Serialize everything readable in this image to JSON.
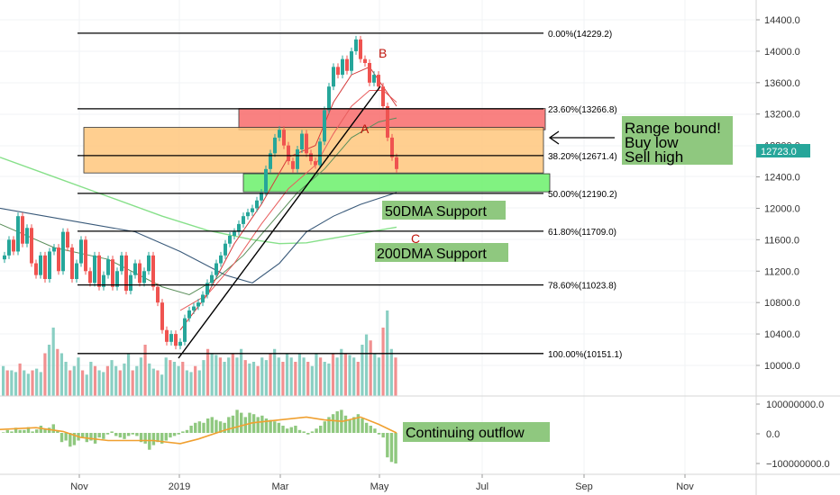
{
  "colors": {
    "up": "#76c7b8",
    "down": "#ef7d7d",
    "up_candle": "#26a69a",
    "down_candle": "#ef5350",
    "price_tag": "#26a69a",
    "red_zone": "#f86b6b",
    "orange_zone": "#ffc77c",
    "green_zone": "#6bf06b",
    "note_box": "#8fc87f",
    "ma200": "#87e08a",
    "ma_dark": "#3a5a7a",
    "flow_line": "#f0a030",
    "annot_red": "#c0160d",
    "fib_line": "#000000"
  },
  "chart_data": {
    "type": "line",
    "title": "",
    "price_axis": {
      "ticks": [
        "14400.0",
        "14000.0",
        "13600.0",
        "13200.0",
        "12800.0",
        "12400.0",
        "12000.0",
        "11600.0",
        "11200.0",
        "10800.0",
        "10400.0",
        "10000.0"
      ],
      "min": 9550,
      "max": 14550
    },
    "time_axis": {
      "labels": [
        "Nov",
        "2019",
        "Mar",
        "May",
        "Jul",
        "Sep",
        "Nov"
      ]
    },
    "last_price": "12723.0",
    "fib_levels": [
      {
        "label": "0.00%(14229.2)",
        "value": 14229.2
      },
      {
        "label": "23.60%(13266.8)",
        "value": 13266.8
      },
      {
        "label": "38.20%(12671.4)",
        "value": 12671.4
      },
      {
        "label": "50.00%(12190.2)",
        "value": 12190.2
      },
      {
        "label": "61.80%(11709.0)",
        "value": 11709.0
      },
      {
        "label": "78.60%(11023.8)",
        "value": 11023.8
      },
      {
        "label": "100.00%(10151.1)",
        "value": 10151.1
      }
    ],
    "zones": [
      {
        "name": "red",
        "from": 13000,
        "to": 13270
      },
      {
        "name": "orange",
        "from": 12450,
        "to": 13030
      },
      {
        "name": "green",
        "from": 12210,
        "to": 12440
      }
    ],
    "price_path": [
      [
        0,
        11350
      ],
      [
        5,
        11400
      ],
      [
        10,
        11600
      ],
      [
        15,
        11450
      ],
      [
        20,
        11900
      ],
      [
        25,
        11550
      ],
      [
        30,
        11750
      ],
      [
        35,
        11300
      ],
      [
        40,
        11150
      ],
      [
        45,
        11400
      ],
      [
        50,
        11100
      ],
      [
        55,
        11450
      ],
      [
        60,
        11500
      ],
      [
        65,
        11200
      ],
      [
        70,
        11700
      ],
      [
        75,
        11500
      ],
      [
        80,
        11100
      ],
      [
        85,
        11300
      ],
      [
        90,
        11600
      ],
      [
        95,
        11200
      ],
      [
        100,
        11050
      ],
      [
        105,
        11400
      ],
      [
        110,
        11000
      ],
      [
        115,
        11150
      ],
      [
        120,
        11350
      ],
      [
        125,
        11000
      ],
      [
        130,
        11200
      ],
      [
        135,
        11400
      ],
      [
        140,
        10950
      ],
      [
        145,
        11150
      ],
      [
        150,
        11300
      ],
      [
        155,
        11050
      ],
      [
        160,
        11200
      ],
      [
        165,
        11400
      ],
      [
        170,
        11000
      ],
      [
        175,
        10800
      ],
      [
        180,
        10450
      ],
      [
        185,
        10300
      ],
      [
        190,
        10400
      ],
      [
        195,
        10250
      ],
      [
        200,
        10300
      ],
      [
        205,
        10600
      ],
      [
        210,
        10700
      ],
      [
        215,
        10750
      ],
      [
        220,
        10800
      ],
      [
        225,
        10900
      ],
      [
        230,
        11050
      ],
      [
        235,
        11150
      ],
      [
        240,
        11300
      ],
      [
        245,
        11400
      ],
      [
        250,
        11550
      ],
      [
        255,
        11650
      ],
      [
        260,
        11700
      ],
      [
        265,
        11800
      ],
      [
        270,
        11900
      ],
      [
        275,
        11950
      ],
      [
        280,
        12000
      ],
      [
        285,
        12100
      ],
      [
        290,
        12200
      ],
      [
        295,
        12500
      ],
      [
        300,
        12700
      ],
      [
        305,
        12900
      ],
      [
        310,
        13000
      ],
      [
        315,
        12800
      ],
      [
        320,
        12600
      ],
      [
        325,
        12500
      ],
      [
        330,
        12750
      ],
      [
        335,
        12950
      ],
      [
        340,
        12700
      ],
      [
        345,
        12600
      ],
      [
        350,
        12550
      ],
      [
        355,
        12850
      ],
      [
        360,
        13250
      ],
      [
        365,
        13550
      ],
      [
        370,
        13800
      ],
      [
        375,
        13700
      ],
      [
        380,
        13900
      ],
      [
        385,
        13750
      ],
      [
        390,
        14000
      ],
      [
        395,
        14150
      ],
      [
        400,
        13900
      ],
      [
        405,
        13850
      ],
      [
        410,
        13600
      ],
      [
        415,
        13700
      ],
      [
        420,
        13550
      ],
      [
        425,
        13300
      ],
      [
        430,
        12900
      ],
      [
        435,
        12650
      ],
      [
        440,
        12500
      ]
    ],
    "ma_fast": [
      [
        200,
        10450
      ],
      [
        230,
        10900
      ],
      [
        260,
        11550
      ],
      [
        290,
        12050
      ],
      [
        320,
        12650
      ],
      [
        350,
        12800
      ],
      [
        370,
        13350
      ],
      [
        390,
        13700
      ],
      [
        410,
        13800
      ],
      [
        425,
        13550
      ],
      [
        440,
        13300
      ]
    ],
    "ma_mid": [
      [
        200,
        10700
      ],
      [
        230,
        10900
      ],
      [
        260,
        11300
      ],
      [
        290,
        11800
      ],
      [
        320,
        12250
      ],
      [
        350,
        12550
      ],
      [
        370,
        12950
      ],
      [
        390,
        13300
      ],
      [
        410,
        13500
      ],
      [
        425,
        13500
      ],
      [
        440,
        13350
      ]
    ],
    "ma50": [
      [
        0,
        11800
      ],
      [
        60,
        11500
      ],
      [
        120,
        11350
      ],
      [
        180,
        11000
      ],
      [
        210,
        10900
      ],
      [
        240,
        11100
      ],
      [
        270,
        11400
      ],
      [
        300,
        11800
      ],
      [
        330,
        12200
      ],
      [
        360,
        12500
      ],
      [
        390,
        12900
      ],
      [
        420,
        13100
      ],
      [
        440,
        13150
      ]
    ],
    "ma_dark": [
      [
        0,
        12000
      ],
      [
        50,
        11900
      ],
      [
        100,
        11800
      ],
      [
        150,
        11700
      ],
      [
        200,
        11450
      ],
      [
        250,
        11150
      ],
      [
        280,
        11050
      ],
      [
        310,
        11300
      ],
      [
        340,
        11700
      ],
      [
        370,
        11900
      ],
      [
        400,
        12050
      ],
      [
        440,
        12200
      ]
    ],
    "ma200": [
      [
        0,
        12650
      ],
      [
        60,
        12400
      ],
      [
        120,
        12150
      ],
      [
        180,
        11900
      ],
      [
        230,
        11720
      ],
      [
        280,
        11600
      ],
      [
        310,
        11550
      ],
      [
        340,
        11560
      ],
      [
        370,
        11620
      ],
      [
        410,
        11700
      ],
      [
        440,
        11760
      ]
    ],
    "volume": [
      0.35,
      0.3,
      0.3,
      0.28,
      0.38,
      0.3,
      0.26,
      0.3,
      0.32,
      0.28,
      0.5,
      0.6,
      0.8,
      0.55,
      0.5,
      0.4,
      0.3,
      0.35,
      0.45,
      0.3,
      0.25,
      0.4,
      0.35,
      0.3,
      0.28,
      0.35,
      0.42,
      0.35,
      0.3,
      0.38,
      0.5,
      0.3,
      0.35,
      0.45,
      0.6,
      0.38,
      0.32,
      0.3,
      0.25,
      0.45,
      0.42,
      0.4,
      0.35,
      0.4,
      0.3,
      0.28,
      0.35,
      0.3,
      0.42,
      0.55,
      0.5,
      0.48,
      0.45,
      0.4,
      0.45,
      0.5,
      0.45,
      0.55,
      0.42,
      0.38,
      0.4,
      0.35,
      0.45,
      0.42,
      0.5,
      0.55,
      0.45,
      0.4,
      0.5,
      0.45,
      0.4,
      0.5,
      0.45,
      0.4,
      0.35,
      0.5,
      0.45,
      0.4,
      0.38,
      0.5,
      0.45,
      0.55,
      0.5,
      0.48,
      0.45,
      0.4,
      0.6,
      0.72,
      0.65,
      0.5,
      0.45,
      0.8,
      1.0,
      0.55,
      0.45
    ],
    "flow_axis": {
      "ticks": [
        "100000000.0",
        "0.0",
        "−100000000.0"
      ]
    },
    "flow": [
      0.02,
      0.1,
      0.05,
      0.18,
      0.1,
      0.1,
      0.2,
      0.05,
      0.12,
      0.25,
      0.15,
      0.18,
      0.3,
      0.08,
      -0.3,
      -0.25,
      -0.45,
      -0.4,
      -0.25,
      -0.15,
      -0.3,
      -0.25,
      -0.35,
      -0.15,
      -0.2,
      -0.05,
      0.05,
      -0.1,
      -0.15,
      -0.2,
      -0.1,
      -0.05,
      -0.1,
      -0.3,
      -0.35,
      -0.55,
      -0.4,
      -0.3,
      -0.35,
      -0.25,
      -0.15,
      -0.1,
      -0.05,
      0.05,
      0.1,
      0.25,
      0.35,
      0.4,
      0.35,
      0.5,
      0.55,
      0.45,
      0.4,
      0.35,
      0.55,
      0.6,
      0.8,
      0.7,
      0.55,
      0.7,
      0.65,
      0.55,
      0.6,
      0.5,
      0.45,
      0.4,
      0.35,
      0.25,
      0.15,
      0.2,
      0.25,
      0.1,
      0.05,
      -0.05,
      0.05,
      0.15,
      0.25,
      0.4,
      0.55,
      0.65,
      0.75,
      0.8,
      0.6,
      0.45,
      0.55,
      0.65,
      0.5,
      0.35,
      0.25,
      0.15,
      -0.05,
      -0.15,
      -0.8,
      -0.95,
      -1.0
    ],
    "flow_ma": [
      [
        0,
        0.12
      ],
      [
        40,
        0.18
      ],
      [
        70,
        0.05
      ],
      [
        90,
        -0.15
      ],
      [
        120,
        -0.25
      ],
      [
        170,
        -0.25
      ],
      [
        200,
        -0.35
      ],
      [
        220,
        -0.2
      ],
      [
        250,
        0.1
      ],
      [
        280,
        0.35
      ],
      [
        310,
        0.45
      ],
      [
        340,
        0.55
      ],
      [
        360,
        0.45
      ],
      [
        380,
        0.4
      ],
      [
        400,
        0.55
      ],
      [
        420,
        0.3
      ],
      [
        440,
        0.0
      ]
    ]
  },
  "annotations": {
    "range_line1": "Range bound!",
    "range_line2": "Buy low",
    "range_line3": "Sell high",
    "support50": "50DMA Support",
    "support200": "200DMA Support",
    "outflow": "Continuing outflow",
    "point_a": "A",
    "point_b": "B",
    "point_c": "C"
  }
}
